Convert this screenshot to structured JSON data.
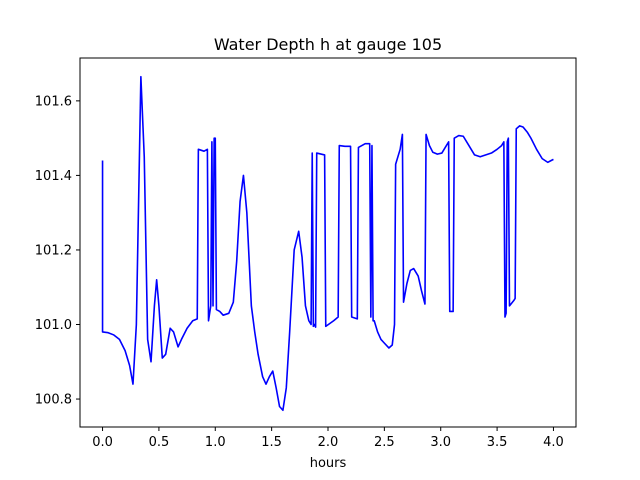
{
  "chart_data": {
    "type": "line",
    "title": "Water Depth h at gauge 105",
    "xlabel": "hours",
    "ylabel": "",
    "xlim": [
      -0.2,
      4.2
    ],
    "ylim": [
      100.725,
      101.715
    ],
    "xticks": [
      0.0,
      0.5,
      1.0,
      1.5,
      2.0,
      2.5,
      3.0,
      3.5,
      4.0
    ],
    "xtick_labels": [
      "0.0",
      "0.5",
      "1.0",
      "1.5",
      "2.0",
      "2.5",
      "3.0",
      "3.5",
      "4.0"
    ],
    "yticks": [
      100.8,
      101.0,
      101.2,
      101.4,
      101.6
    ],
    "ytick_labels": [
      "100.8",
      "101.0",
      "101.2",
      "101.4",
      "101.6"
    ],
    "grid": false,
    "series": [
      {
        "color": "#0000ff",
        "points": [
          [
            0.0,
            101.44
          ],
          [
            0.0,
            100.98
          ],
          [
            0.05,
            100.978
          ],
          [
            0.1,
            100.972
          ],
          [
            0.15,
            100.96
          ],
          [
            0.2,
            100.93
          ],
          [
            0.24,
            100.89
          ],
          [
            0.27,
            100.84
          ],
          [
            0.3,
            101.0
          ],
          [
            0.34,
            101.665
          ],
          [
            0.37,
            101.45
          ],
          [
            0.4,
            100.96
          ],
          [
            0.43,
            100.9
          ],
          [
            0.46,
            101.05
          ],
          [
            0.48,
            101.12
          ],
          [
            0.5,
            101.05
          ],
          [
            0.53,
            100.91
          ],
          [
            0.56,
            100.92
          ],
          [
            0.6,
            100.99
          ],
          [
            0.63,
            100.98
          ],
          [
            0.67,
            100.94
          ],
          [
            0.7,
            100.96
          ],
          [
            0.75,
            100.99
          ],
          [
            0.8,
            101.01
          ],
          [
            0.84,
            101.015
          ],
          [
            0.85,
            101.47
          ],
          [
            0.9,
            101.465
          ],
          [
            0.93,
            101.47
          ],
          [
            0.94,
            101.01
          ],
          [
            0.96,
            101.05
          ],
          [
            0.97,
            101.49
          ],
          [
            0.98,
            101.05
          ],
          [
            0.99,
            101.5
          ],
          [
            1.0,
            101.5
          ],
          [
            1.01,
            101.04
          ],
          [
            1.04,
            101.035
          ],
          [
            1.07,
            101.025
          ],
          [
            1.12,
            101.03
          ],
          [
            1.16,
            101.06
          ],
          [
            1.19,
            101.17
          ],
          [
            1.22,
            101.33
          ],
          [
            1.25,
            101.4
          ],
          [
            1.28,
            101.3
          ],
          [
            1.32,
            101.05
          ],
          [
            1.35,
            100.98
          ],
          [
            1.38,
            100.92
          ],
          [
            1.42,
            100.86
          ],
          [
            1.45,
            100.84
          ],
          [
            1.48,
            100.86
          ],
          [
            1.51,
            100.875
          ],
          [
            1.54,
            100.83
          ],
          [
            1.57,
            100.78
          ],
          [
            1.6,
            100.77
          ],
          [
            1.63,
            100.83
          ],
          [
            1.66,
            100.98
          ],
          [
            1.7,
            101.2
          ],
          [
            1.74,
            101.25
          ],
          [
            1.77,
            101.18
          ],
          [
            1.8,
            101.05
          ],
          [
            1.83,
            101.01
          ],
          [
            1.85,
            101.0
          ],
          [
            1.86,
            101.46
          ],
          [
            1.87,
            100.995
          ],
          [
            1.88,
            101.0
          ],
          [
            1.89,
            100.993
          ],
          [
            1.9,
            101.46
          ],
          [
            1.97,
            101.455
          ],
          [
            1.98,
            100.995
          ],
          [
            2.05,
            101.01
          ],
          [
            2.09,
            101.02
          ],
          [
            2.1,
            101.48
          ],
          [
            2.15,
            101.478
          ],
          [
            2.2,
            101.478
          ],
          [
            2.21,
            101.02
          ],
          [
            2.26,
            101.015
          ],
          [
            2.27,
            101.475
          ],
          [
            2.33,
            101.485
          ],
          [
            2.37,
            101.485
          ],
          [
            2.38,
            101.02
          ],
          [
            2.39,
            101.48
          ],
          [
            2.4,
            101.01
          ],
          [
            2.41,
            101.01
          ],
          [
            2.44,
            100.98
          ],
          [
            2.47,
            100.96
          ],
          [
            2.5,
            100.95
          ],
          [
            2.54,
            100.937
          ],
          [
            2.57,
            100.945
          ],
          [
            2.59,
            101.0
          ],
          [
            2.6,
            101.43
          ],
          [
            2.64,
            101.47
          ],
          [
            2.66,
            101.51
          ],
          [
            2.67,
            101.06
          ],
          [
            2.7,
            101.11
          ],
          [
            2.73,
            101.145
          ],
          [
            2.76,
            101.15
          ],
          [
            2.8,
            101.13
          ],
          [
            2.83,
            101.09
          ],
          [
            2.86,
            101.055
          ],
          [
            2.87,
            101.51
          ],
          [
            2.9,
            101.48
          ],
          [
            2.93,
            101.462
          ],
          [
            2.97,
            101.457
          ],
          [
            3.01,
            101.46
          ],
          [
            3.04,
            101.475
          ],
          [
            3.07,
            101.49
          ],
          [
            3.08,
            101.035
          ],
          [
            3.11,
            101.035
          ],
          [
            3.12,
            101.5
          ],
          [
            3.16,
            101.507
          ],
          [
            3.2,
            101.505
          ],
          [
            3.25,
            101.48
          ],
          [
            3.3,
            101.455
          ],
          [
            3.35,
            101.45
          ],
          [
            3.4,
            101.455
          ],
          [
            3.45,
            101.46
          ],
          [
            3.5,
            101.47
          ],
          [
            3.54,
            101.48
          ],
          [
            3.56,
            101.49
          ],
          [
            3.57,
            101.02
          ],
          [
            3.58,
            101.03
          ],
          [
            3.59,
            101.49
          ],
          [
            3.6,
            101.5
          ],
          [
            3.61,
            101.05
          ],
          [
            3.65,
            101.065
          ],
          [
            3.66,
            101.07
          ],
          [
            3.67,
            101.525
          ],
          [
            3.7,
            101.533
          ],
          [
            3.73,
            101.53
          ],
          [
            3.77,
            101.515
          ],
          [
            3.8,
            101.5
          ],
          [
            3.85,
            101.47
          ],
          [
            3.9,
            101.445
          ],
          [
            3.95,
            101.435
          ],
          [
            3.98,
            101.44
          ],
          [
            4.0,
            101.443
          ]
        ]
      }
    ]
  }
}
